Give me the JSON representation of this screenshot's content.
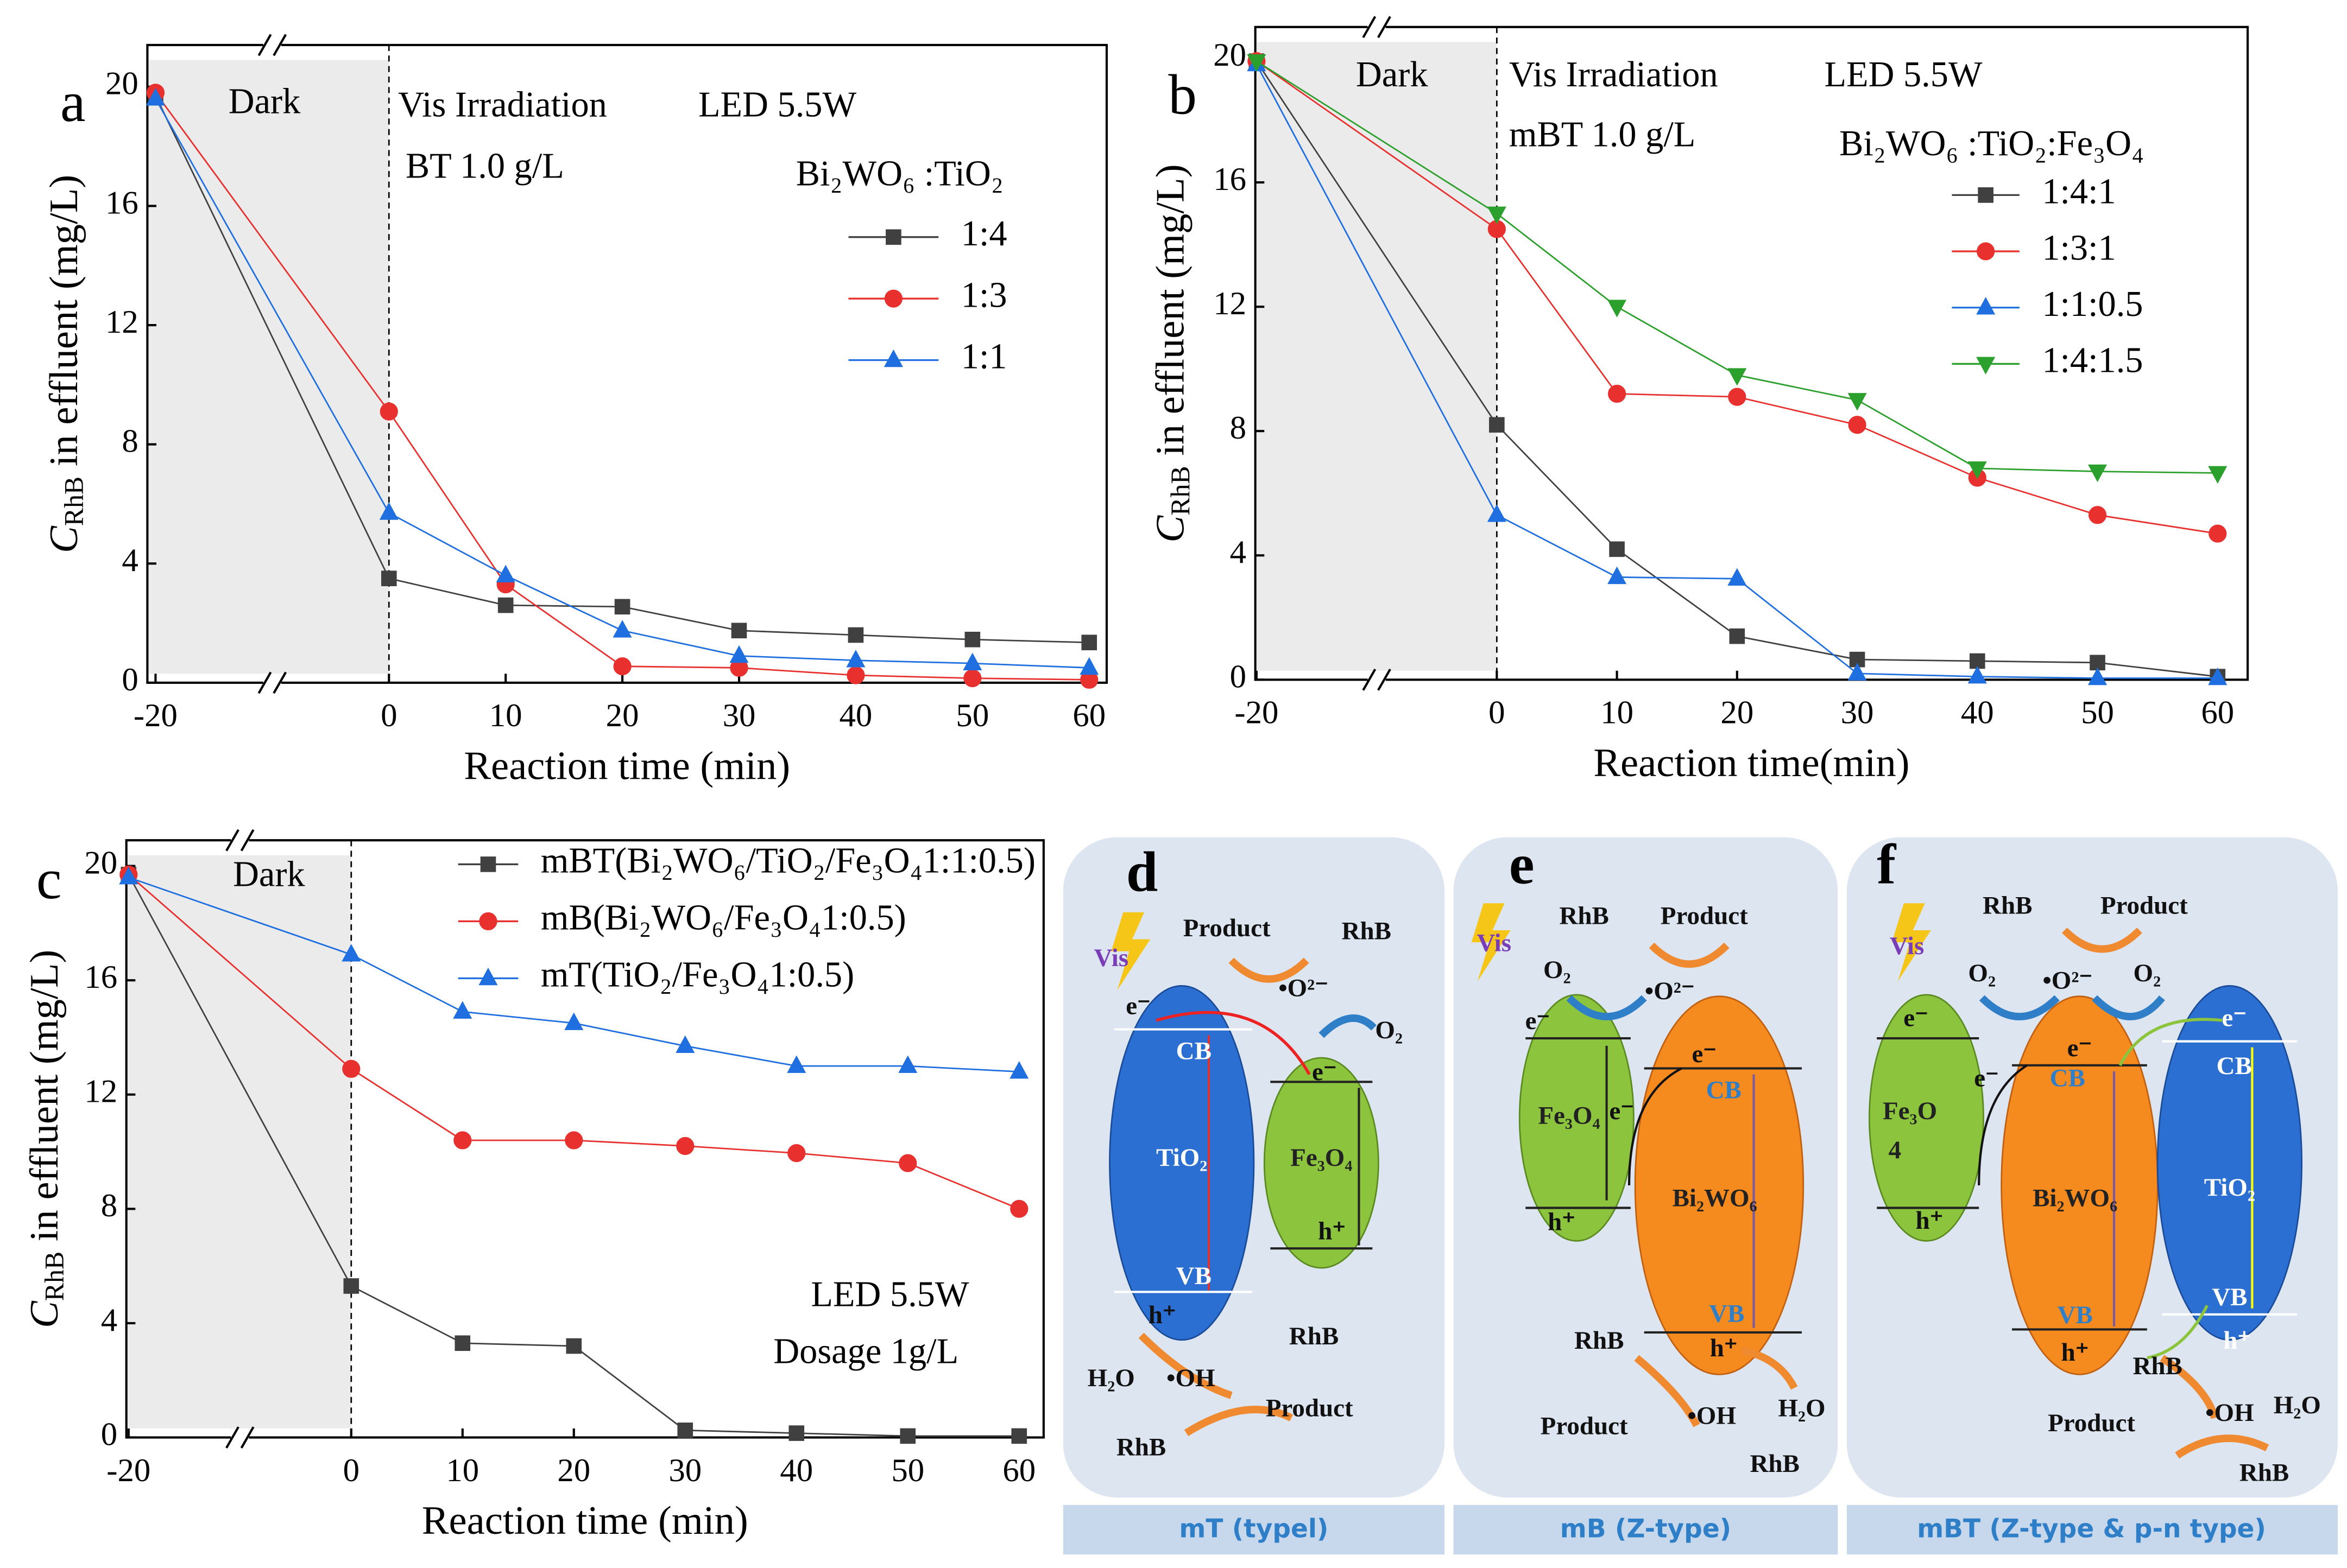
{
  "chart_data": [
    {
      "type": "line",
      "panel_label": "a",
      "x": [
        -20,
        0,
        10,
        20,
        30,
        40,
        50,
        60
      ],
      "xlim": [
        -20.7,
        61.5
      ],
      "xticks": [
        -20,
        0,
        10,
        20,
        30,
        40,
        50,
        60
      ],
      "ylim": [
        0,
        21.4
      ],
      "yticks": [
        0,
        4,
        8,
        12,
        16,
        20
      ],
      "xlabel": "Reaction time  (min)",
      "ylabel_symbol": "C",
      "ylabel_subscript": "RhB",
      "ylabel": " in effluent  (mg/L)",
      "annotations": [
        "Dark",
        "Vis Irradiation",
        "LED 5.5W",
        "BT 1.0 g/L"
      ],
      "legend_title": "Bi₂WO₆ :TiO₂",
      "series": [
        {
          "name": "1:4",
          "color": "#404040",
          "marker": "square",
          "values": [
            19.7,
            3.5,
            2.6,
            2.55,
            1.75,
            1.6,
            1.45,
            1.35
          ]
        },
        {
          "name": "1:3",
          "color": "#e8312f",
          "marker": "circle",
          "values": [
            19.8,
            9.1,
            3.3,
            0.55,
            0.5,
            0.25,
            0.15,
            0.1
          ]
        },
        {
          "name": "1:1",
          "color": "#1f6fe0",
          "marker": "triangle",
          "values": [
            19.6,
            5.7,
            3.6,
            1.75,
            0.9,
            0.75,
            0.65,
            0.5
          ]
        }
      ]
    },
    {
      "type": "line",
      "panel_label": "b",
      "x": [
        -20,
        0,
        10,
        20,
        30,
        40,
        50,
        60
      ],
      "xlim": [
        -20.1,
        62.5
      ],
      "xticks": [
        -20,
        0,
        10,
        20,
        30,
        40,
        50,
        60
      ],
      "ylim": [
        0,
        21
      ],
      "yticks": [
        0,
        4,
        8,
        12,
        16,
        20
      ],
      "xlabel": "Reaction time(min)",
      "ylabel_symbol": "C",
      "ylabel_subscript": "RhB",
      "ylabel": " in effluent  (mg/L)",
      "annotations": [
        "Dark",
        "Vis Irradiation",
        "LED 5.5W",
        "mBT 1.0 g/L"
      ],
      "legend_title": "Bi₂WO₆ :TiO₂:Fe₃O₄",
      "series": [
        {
          "name": "1:4:1",
          "color": "#404040",
          "marker": "square",
          "values": [
            19.9,
            8.2,
            4.2,
            1.4,
            0.65,
            0.6,
            0.55,
            0.1
          ]
        },
        {
          "name": "1:3:1",
          "color": "#e8312f",
          "marker": "circle",
          "values": [
            19.9,
            14.5,
            9.2,
            9.1,
            8.2,
            6.5,
            5.3,
            4.7
          ]
        },
        {
          "name": "1:1:0.5",
          "color": "#1f6fe0",
          "marker": "triangle",
          "values": [
            19.8,
            5.3,
            3.3,
            3.25,
            0.2,
            0.1,
            0.05,
            0.05
          ]
        },
        {
          "name": "1:4:1.5",
          "color": "#2ca02c",
          "marker": "triangle-down",
          "values": [
            19.9,
            15.0,
            12.0,
            9.8,
            9.0,
            6.8,
            6.7,
            6.65
          ]
        }
      ]
    },
    {
      "type": "line",
      "panel_label": "c",
      "x": [
        -20,
        0,
        10,
        20,
        30,
        40,
        50,
        60
      ],
      "xlim": [
        -20.2,
        62.2
      ],
      "xticks": [
        -20,
        0,
        10,
        20,
        30,
        40,
        50,
        60
      ],
      "ylim": [
        0,
        20.9
      ],
      "yticks": [
        0,
        4,
        8,
        12,
        16,
        20
      ],
      "xlabel": "Reaction time  (min)",
      "ylabel_symbol": "C",
      "ylabel_subscript": "RhB",
      "ylabel": " in effluent  (mg/L)",
      "annotations": [
        "Dark",
        "LED 5.5W",
        "Dosage 1g/L"
      ],
      "series": [
        {
          "name": "mBT(Bi₂WO₆/TiO₂/Fe₃O₄1:1:0.5)",
          "color": "#404040",
          "marker": "square",
          "values": [
            19.7,
            5.3,
            3.3,
            3.2,
            0.25,
            0.15,
            0.05,
            0.05
          ]
        },
        {
          "name": "mB(Bi₂WO₆/Fe₃O₄1:0.5)",
          "color": "#e8312f",
          "marker": "circle",
          "values": [
            19.7,
            12.9,
            10.4,
            10.4,
            10.2,
            9.95,
            9.6,
            8.0
          ]
        },
        {
          "name": "mT(TiO₂/Fe₃O₄1:0.5)",
          "color": "#1f6fe0",
          "marker": "triangle",
          "values": [
            19.6,
            16.9,
            14.9,
            14.5,
            13.7,
            13.0,
            13.0,
            12.8
          ]
        }
      ]
    }
  ],
  "diagrams": [
    {
      "label": "d",
      "caption": "mT (typel)",
      "texts": [
        "Vis",
        "Product",
        "RhB",
        "•O²⁻",
        "O₂",
        "e⁻",
        "CB",
        "e⁻",
        "TiO₂",
        "Fe₃O₄",
        "VB",
        "h⁺",
        "h⁺",
        "H₂O",
        "•OH",
        "RhB",
        "Product",
        "RhB"
      ]
    },
    {
      "label": "e",
      "caption": "mB (Z-type)",
      "texts": [
        "Vis",
        "RhB",
        "Product",
        "O₂",
        "•O²⁻",
        "e⁻",
        "e⁻",
        "e⁻",
        "CB",
        "Fe₃O₄",
        "Bi₂WO₆",
        "h⁺",
        "VB",
        "h⁺",
        "RhB",
        "Product",
        "•OH",
        "H₂O",
        "RhB"
      ]
    },
    {
      "label": "f",
      "caption": "mBT (Z-type & p-n type)",
      "texts": [
        "Vis",
        "RhB",
        "Product",
        "O₂",
        "•O²⁻",
        "O₂",
        "e⁻",
        "e⁻",
        "e⁻",
        "CB",
        "CB",
        "Fe₃O",
        "4",
        "e⁻",
        "Bi₂WO₆",
        "TiO₂",
        "h⁺",
        "VB",
        "VB",
        "h⁺",
        "h⁺",
        "RhB",
        "Product",
        "•OH",
        "H₂O",
        "RhB"
      ]
    }
  ]
}
